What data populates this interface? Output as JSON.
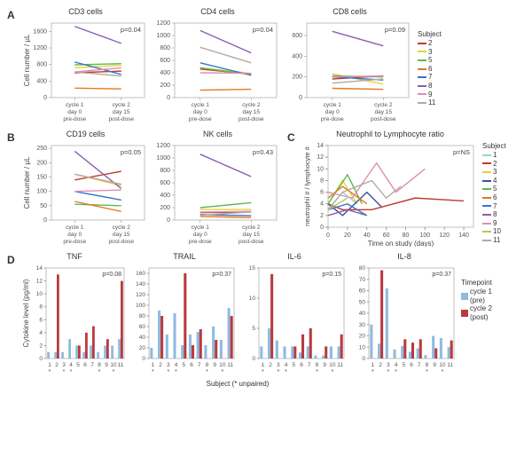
{
  "subject_colors": {
    "1": "#8fd7d1",
    "2": "#be3b2a",
    "3": "#e6d13b",
    "4": "#3b4fa0",
    "5": "#5fb84f",
    "6": "#e07a1f",
    "7": "#3874c9",
    "8": "#8a5fae",
    "9": "#de8fb2",
    "10": "#b7c85a",
    "11": "#b5a8a0"
  },
  "timepoint_colors": {
    "pre": "#8fbadf",
    "post": "#b93a3f"
  },
  "panelA": {
    "ylabel": "Cell number / µL",
    "xticks": [
      "cycle 1\nday 0\npre-dose",
      "cycle 2\nday 15\npost-dose"
    ],
    "charts": [
      {
        "title": "CD3 cells",
        "p": "p=0.04",
        "ylim": [
          0,
          1800
        ],
        "yticks": [
          0,
          400,
          800,
          1200,
          1600
        ],
        "series": [
          {
            "subj": "2",
            "y": [
              600,
              640
            ]
          },
          {
            "subj": "3",
            "y": [
              720,
              780
            ]
          },
          {
            "subj": "5",
            "y": [
              790,
              820
            ]
          },
          {
            "subj": "6",
            "y": [
              230,
              210
            ]
          },
          {
            "subj": "7",
            "y": [
              860,
              560
            ]
          },
          {
            "subj": "8",
            "y": [
              1720,
              1310
            ]
          },
          {
            "subj": "9",
            "y": [
              620,
              720
            ]
          },
          {
            "subj": "11",
            "y": [
              620,
              520
            ]
          }
        ]
      },
      {
        "title": "CD4 cells",
        "p": "p=0.04",
        "ylim": [
          0,
          1200
        ],
        "yticks": [
          0,
          200,
          400,
          600,
          800,
          1000,
          1200
        ],
        "series": [
          {
            "subj": "2",
            "y": [
              460,
              380
            ]
          },
          {
            "subj": "3",
            "y": [
              480,
              390
            ]
          },
          {
            "subj": "5",
            "y": [
              480,
              370
            ]
          },
          {
            "subj": "6",
            "y": [
              120,
              135
            ]
          },
          {
            "subj": "7",
            "y": [
              560,
              360
            ]
          },
          {
            "subj": "8",
            "y": [
              1080,
              720
            ]
          },
          {
            "subj": "9",
            "y": [
              400,
              390
            ]
          },
          {
            "subj": "11",
            "y": [
              810,
              560
            ]
          }
        ]
      },
      {
        "title": "CD8 cells",
        "p": "p=0.09",
        "ylim": [
          0,
          720
        ],
        "yticks": [
          0,
          200,
          400,
          600
        ],
        "series": [
          {
            "subj": "2",
            "y": [
              180,
              210
            ]
          },
          {
            "subj": "3",
            "y": [
              230,
              130
            ]
          },
          {
            "subj": "5",
            "y": [
              210,
              200
            ]
          },
          {
            "subj": "6",
            "y": [
              90,
              80
            ]
          },
          {
            "subj": "7",
            "y": [
              200,
              170
            ]
          },
          {
            "subj": "8",
            "y": [
              640,
              500
            ]
          },
          {
            "subj": "9",
            "y": [
              200,
              210
            ]
          },
          {
            "subj": "11",
            "y": [
              140,
              180
            ]
          }
        ]
      }
    ],
    "legend": {
      "title": "Subject",
      "items": [
        "2",
        "3",
        "5",
        "6",
        "7",
        "8",
        "9",
        "11"
      ]
    }
  },
  "panelB": {
    "ylabel": "Cell number / µL",
    "xticks": [
      "cycle 1\nday 0\npre-dose",
      "cycle 2\nday 15\npost-dose"
    ],
    "charts": [
      {
        "title": "CD19 cells",
        "p": "p=0.05",
        "ylim": [
          0,
          260
        ],
        "yticks": [
          0,
          50,
          100,
          150,
          200,
          250
        ],
        "series": [
          {
            "subj": "2",
            "y": [
              140,
              170
            ]
          },
          {
            "subj": "3",
            "y": [
              160,
              120
            ]
          },
          {
            "subj": "5",
            "y": [
              55,
              50
            ]
          },
          {
            "subj": "6",
            "y": [
              65,
              30
            ]
          },
          {
            "subj": "7",
            "y": [
              100,
              70
            ]
          },
          {
            "subj": "8",
            "y": [
              240,
              110
            ]
          },
          {
            "subj": "9",
            "y": [
              100,
              105
            ]
          },
          {
            "subj": "11",
            "y": [
              160,
              125
            ]
          }
        ]
      },
      {
        "title": "NK cells",
        "p": "p=0.43",
        "ylim": [
          0,
          1200
        ],
        "yticks": [
          0,
          200,
          400,
          600,
          800,
          1000,
          1200
        ],
        "series": [
          {
            "subj": "2",
            "y": [
              120,
              130
            ]
          },
          {
            "subj": "3",
            "y": [
              170,
              170
            ]
          },
          {
            "subj": "5",
            "y": [
              200,
              280
            ]
          },
          {
            "subj": "6",
            "y": [
              60,
              40
            ]
          },
          {
            "subj": "7",
            "y": [
              90,
              70
            ]
          },
          {
            "subj": "8",
            "y": [
              1060,
              700
            ]
          },
          {
            "subj": "9",
            "y": [
              130,
              140
            ]
          },
          {
            "subj": "11",
            "y": [
              80,
              130
            ]
          }
        ]
      }
    ]
  },
  "panelC": {
    "title": "Neutrophil to Lymphocyte ratio",
    "p": "p=NS",
    "xlabel": "Time on study (days)",
    "ylabel": "neutrophil # / lymphocyte #",
    "xlim": [
      0,
      150
    ],
    "xticks": [
      0,
      20,
      40,
      60,
      80,
      100,
      120,
      140
    ],
    "ylim": [
      0,
      14
    ],
    "yticks": [
      0,
      2,
      4,
      6,
      8,
      10,
      12,
      14
    ],
    "legend": {
      "title": "Subject",
      "items": [
        "1",
        "2",
        "3",
        "4",
        "5",
        "6",
        "7",
        "8",
        "9",
        "10",
        "11"
      ]
    },
    "series": [
      {
        "subj": "1",
        "pts": [
          [
            0,
            3
          ],
          [
            15,
            6
          ],
          [
            30,
            4
          ]
        ]
      },
      {
        "subj": "2",
        "pts": [
          [
            0,
            4
          ],
          [
            15,
            3
          ],
          [
            45,
            3
          ],
          [
            90,
            5
          ],
          [
            140,
            4.5
          ]
        ]
      },
      {
        "subj": "3",
        "pts": [
          [
            0,
            4
          ],
          [
            15,
            8
          ],
          [
            30,
            4
          ]
        ]
      },
      {
        "subj": "4",
        "pts": [
          [
            0,
            4
          ],
          [
            15,
            2
          ],
          [
            40,
            6
          ],
          [
            55,
            3.5
          ]
        ]
      },
      {
        "subj": "5",
        "pts": [
          [
            0,
            4
          ],
          [
            20,
            9
          ],
          [
            35,
            4
          ]
        ]
      },
      {
        "subj": "6",
        "pts": [
          [
            0,
            5
          ],
          [
            15,
            7
          ],
          [
            40,
            4
          ]
        ]
      },
      {
        "subj": "7",
        "pts": [
          [
            0,
            3
          ],
          [
            20,
            4
          ],
          [
            40,
            2
          ]
        ]
      },
      {
        "subj": "8",
        "pts": [
          [
            0,
            2
          ],
          [
            20,
            3
          ],
          [
            40,
            2
          ]
        ]
      },
      {
        "subj": "9",
        "pts": [
          [
            0,
            6
          ],
          [
            25,
            5
          ],
          [
            50,
            11
          ],
          [
            70,
            6
          ],
          [
            100,
            10
          ]
        ]
      },
      {
        "subj": "10",
        "pts": [
          [
            0,
            3
          ],
          [
            20,
            5
          ]
        ]
      },
      {
        "subj": "11",
        "pts": [
          [
            0,
            3
          ],
          [
            15,
            6
          ],
          [
            45,
            8
          ],
          [
            60,
            5
          ],
          [
            75,
            7
          ]
        ]
      }
    ]
  },
  "panelD": {
    "ylabel": "Cytokine level (pg/ml)",
    "xlabel": "Subject (* unpaired)",
    "subjects": [
      "1",
      "2",
      "3",
      "4",
      "5",
      "6",
      "7",
      "8",
      "9",
      "10",
      "11"
    ],
    "stars": [
      "1",
      "3",
      "4",
      "8",
      "10"
    ],
    "legend": {
      "title": "Timepoint",
      "items": [
        {
          "key": "pre",
          "label": "cycle 1\n(pre)"
        },
        {
          "key": "post",
          "label": "cycle 2\n(post)"
        }
      ]
    },
    "charts": [
      {
        "title": "TNF",
        "p": "p=0.08",
        "ylim": [
          0,
          14
        ],
        "yticks": [
          0,
          2,
          4,
          6,
          8,
          10,
          12,
          14
        ],
        "pre": [
          1,
          1,
          1,
          3,
          2,
          1,
          2,
          1,
          2,
          2,
          3
        ],
        "post": [
          null,
          13,
          null,
          null,
          2,
          4,
          5,
          null,
          3,
          null,
          12
        ]
      },
      {
        "title": "TRAIL",
        "p": "p=0.37",
        "ylim": [
          0,
          170
        ],
        "yticks": [
          0,
          20,
          40,
          60,
          80,
          100,
          120,
          140,
          160
        ],
        "pre": [
          20,
          90,
          45,
          85,
          25,
          45,
          50,
          25,
          60,
          35,
          95
        ],
        "post": [
          null,
          80,
          null,
          null,
          160,
          25,
          55,
          null,
          35,
          null,
          80
        ]
      },
      {
        "title": "IL-6",
        "p": "p=0.15",
        "ylim": [
          0,
          15
        ],
        "yticks": [
          0,
          5,
          10,
          15
        ],
        "pre": [
          2,
          5,
          3,
          2,
          2,
          1,
          2,
          0.5,
          0.5,
          2,
          2
        ],
        "post": [
          null,
          14,
          null,
          null,
          2,
          4,
          5,
          null,
          2,
          null,
          4
        ]
      },
      {
        "title": "IL-8",
        "p": "p=0.37",
        "ylim": [
          0,
          80
        ],
        "yticks": [
          0,
          10,
          20,
          30,
          40,
          50,
          60,
          70,
          80
        ],
        "pre": [
          30,
          13,
          62,
          8,
          11,
          6,
          9,
          3,
          20,
          18,
          10
        ],
        "post": [
          null,
          78,
          null,
          null,
          17,
          14,
          17,
          null,
          9,
          null,
          16
        ]
      }
    ]
  }
}
